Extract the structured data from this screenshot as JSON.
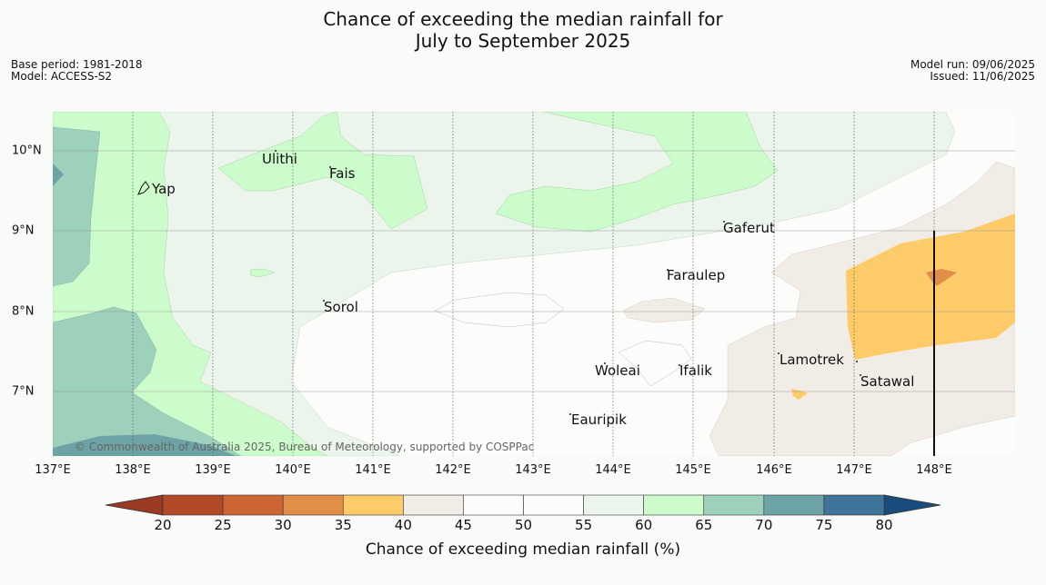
{
  "title_line1": "Chance of exceeding the median rainfall for",
  "title_line2": "July to September 2025",
  "base_period": "Base period: 1981-2018",
  "model": "Model: ACCESS-S2",
  "model_run": "Model run: 09/06/2025",
  "issued": "Issued: 11/06/2025",
  "longitudes": [
    "137°E",
    "138°E",
    "139°E",
    "140°E",
    "141°E",
    "142°E",
    "143°E",
    "144°E",
    "145°E",
    "146°E",
    "147°E",
    "148°E"
  ],
  "latitudes": [
    "10°N",
    "9°N",
    "8°N",
    "7°N"
  ],
  "places": {
    "yap": "Yap",
    "ulithi": "Ulithi",
    "fais": "Fais",
    "gaferut": "Gaferut",
    "faraulep": "Faraulep",
    "sorol": "Sorol",
    "lamotrek": "Lamotrek",
    "woleai": "Woleai",
    "ifalik": "Ifalik",
    "satawal": "Satawal",
    "eauripik": "Eauripik"
  },
  "copyright": "© Commonwealth of Australia 2025, Bureau of Meteorology, supported by COSPPac",
  "colorbar": {
    "ticks": [
      "20",
      "25",
      "30",
      "35",
      "40",
      "45",
      "50",
      "55",
      "60",
      "65",
      "70",
      "75",
      "80"
    ],
    "colors": [
      "#b34a27",
      "#cf6433",
      "#e18f48",
      "#fdcb67",
      "#f1ece6",
      "#fcfdfb",
      "#fcfdfb",
      "#ecf5ec",
      "#ccfccc",
      "#9dd1bb",
      "#6ea3a5",
      "#3f7397"
    ],
    "under_color": "#9a3a22",
    "over_color": "#174c7c",
    "label": "Chance of exceeding median rainfall (%)"
  }
}
